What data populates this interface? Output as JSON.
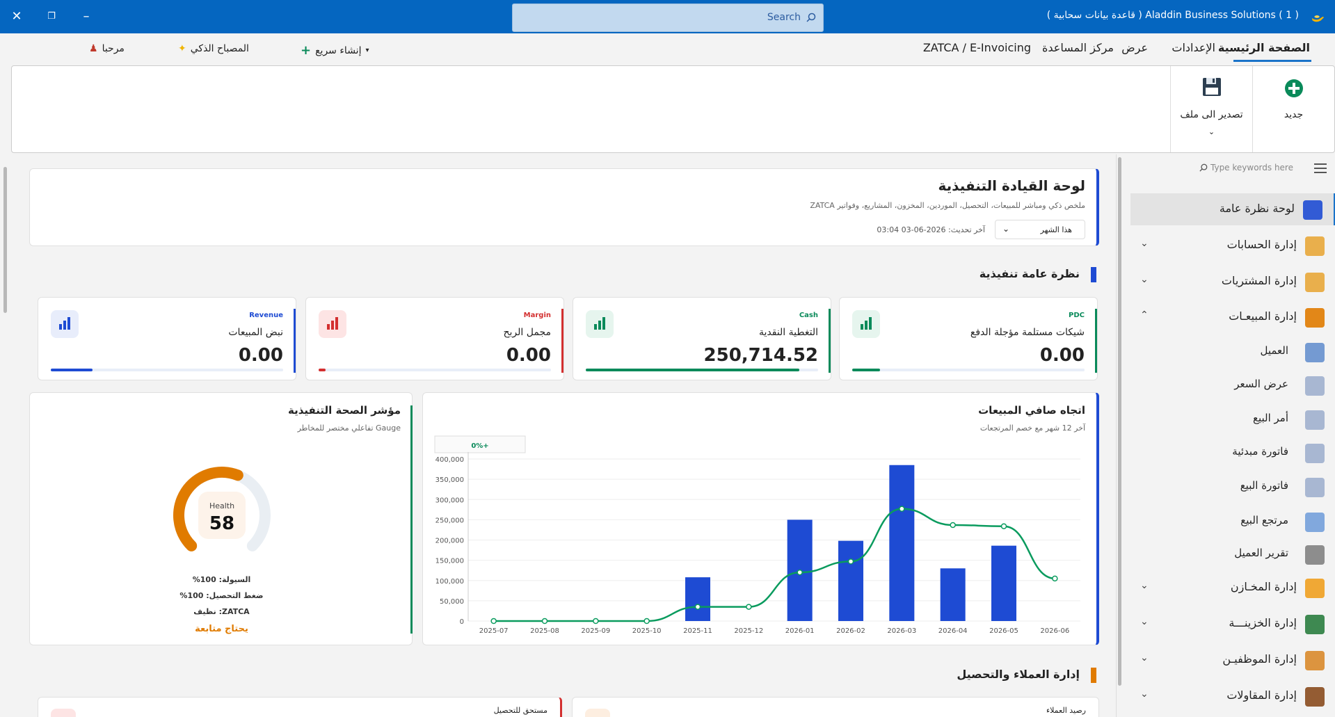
{
  "titlebar": {
    "app_title": "Aladdin Business Solutions  ( 1 )  ( قاعدة بيانات سحابية )",
    "search_placeholder": "Search"
  },
  "menubar": {
    "items": [
      "الصفحة الرئيسية",
      "الإعدادات",
      "عرض",
      "مركز المساعدة",
      "ZATCA / E-Invoicing"
    ],
    "quick_create": "إنشاء سريع",
    "smart_lamp": "المصباح الذكي",
    "welcome": "مرحبا"
  },
  "ribbon": {
    "new_label": "جديد",
    "export_label": "تصدير الى ملف"
  },
  "sidebar": {
    "search_placeholder": "Type keywords here",
    "items": [
      {
        "label": "لوحة نظرة عامة"
      },
      {
        "label": "إدارة الحسابات"
      },
      {
        "label": "إدارة المشتريات"
      },
      {
        "label": "إدارة المبيعـات"
      },
      {
        "label": "العميل"
      },
      {
        "label": "عرض السعر"
      },
      {
        "label": "أمر البيع"
      },
      {
        "label": "فاتورة مبدئية"
      },
      {
        "label": "فاتورة البيع"
      },
      {
        "label": "مرتجع البيع"
      },
      {
        "label": "تقرير العميل"
      },
      {
        "label": "إدارة المخـازن"
      },
      {
        "label": "إدارة الخزينـــة"
      },
      {
        "label": "إدارة الموظفيـن"
      },
      {
        "label": "إدارة المقاولات"
      }
    ]
  },
  "dashboard": {
    "title": "لوحة القيادة التنفيذية",
    "subtitle": "ملخص ذكي ومباشر للمبيعات، التحصيل، الموردين، المخزون، المشاريع، وفواتير ZATCA",
    "period": "هذا الشهر",
    "updated": "آخر تحديث: 2026-06-03 03:04",
    "section_overview": "نظرة عامة تنفيذية",
    "section_customers": "إدارة العملاء والتحصيل",
    "colors": {
      "blue": "#1e4bd3",
      "red": "#d32f2f",
      "green": "#0a8a5a",
      "orange": "#e07b00"
    }
  },
  "kpis": [
    {
      "tag": "PDC",
      "name": "شيكات مستلمة مؤجلة الدفع",
      "value": "0.00",
      "color": "#0a8a5a",
      "progress": 0.12
    },
    {
      "tag": "Cash",
      "name": "التغطية النقدية",
      "value": "250,714.52",
      "color": "#0a8a5a",
      "progress": 0.92
    },
    {
      "tag": "Margin",
      "name": "مجمل الربح",
      "value": "0.00",
      "color": "#d32f2f",
      "progress": 0.03
    },
    {
      "tag": "Revenue",
      "name": "نبض المبيعات",
      "value": "0.00",
      "color": "#1e4bd3",
      "progress": 0.18
    }
  ],
  "sales_chart": {
    "title": "اتجاه صافي المبيعات",
    "subtitle": "آخر 12 شهر مع خصم المرتجعات",
    "badge": "0%+"
  },
  "chart_data": {
    "type": "bar",
    "categories": [
      "2025-07",
      "2025-08",
      "2025-09",
      "2025-10",
      "2025-11",
      "2025-12",
      "2026-01",
      "2026-02",
      "2026-03",
      "2026-04",
      "2026-05",
      "2026-06"
    ],
    "series": [
      {
        "type": "bar",
        "values": [
          0,
          0,
          0,
          0,
          108000,
          0,
          250000,
          198000,
          385000,
          130000,
          186000,
          0
        ],
        "color": "#1e4bd3"
      },
      {
        "type": "line",
        "values": [
          0,
          0,
          0,
          0,
          35000,
          35000,
          120000,
          147000,
          277000,
          237000,
          234000,
          105000
        ],
        "color": "#0a9b5e"
      }
    ],
    "y_ticks": [
      "0",
      "50,000",
      "100,000",
      "150,000",
      "200,000",
      "250,000",
      "300,000",
      "350,000",
      "400,000"
    ],
    "ylim": [
      0,
      400000
    ],
    "grid": true
  },
  "gauge": {
    "title": "مؤشر الصحة التنفيذية",
    "subtitle": "Gauge تفاعلي مختصر للمخاطر",
    "label": "Health",
    "value": 58,
    "max": 100,
    "color": "#e07b00",
    "liquidity": "السيولة: 100%",
    "collection": "ضغط التحصيل: 100%",
    "zatca": "ZATCA: نظيف",
    "status": "يحتاج متابعة"
  },
  "bottom_cards": {
    "customers_balance": "رصيد العملاء",
    "due_collection": "مستحق للتحصيل"
  }
}
